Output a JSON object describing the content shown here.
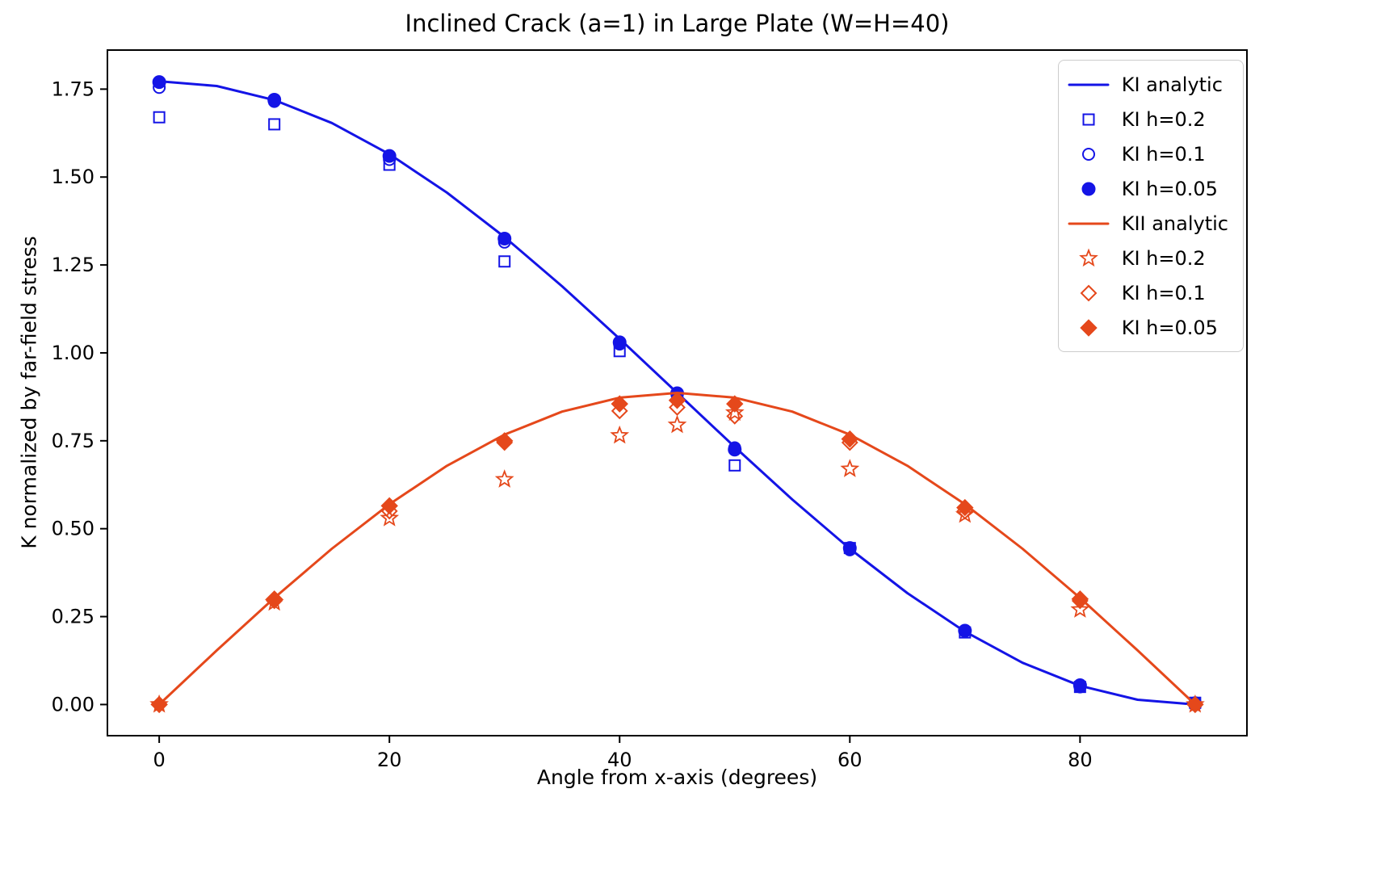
{
  "figure": {
    "background": "#ffffff"
  },
  "chart_data": {
    "type": "line",
    "title": "Inclined Crack (a=1) in Large Plate (W=H=40)",
    "xlabel": "Angle from x-axis (degrees)",
    "ylabel": "K normalized by far-field stress",
    "xlim": [
      -4.5,
      94.5
    ],
    "ylim": [
      -0.0886,
      1.8611
    ],
    "x_ticks": [
      0,
      20,
      40,
      60,
      80
    ],
    "x_tick_labels": [
      "0",
      "20",
      "40",
      "60",
      "80"
    ],
    "y_ticks": [
      0,
      0.25,
      0.5,
      0.75,
      1.0,
      1.25,
      1.5,
      1.75
    ],
    "y_tick_labels": [
      "0.00",
      "0.25",
      "0.50",
      "0.75",
      "1.00",
      "1.25",
      "1.50",
      "1.75"
    ],
    "grid": false,
    "legend_position": "upper right",
    "colors": {
      "ki_blue": "#1414e6",
      "kii_red": "#e5481b"
    },
    "series": [
      {
        "name": "KI analytic",
        "style": "line",
        "color": "#1414e6",
        "x": [
          0,
          5,
          10,
          15,
          20,
          25,
          30,
          35,
          40,
          45,
          50,
          55,
          60,
          65,
          70,
          75,
          80,
          85,
          90
        ],
        "y": [
          1.7725,
          1.759,
          1.7189,
          1.6537,
          1.5651,
          1.4558,
          1.3294,
          1.1894,
          1.0402,
          0.8862,
          0.7323,
          0.5831,
          0.4431,
          0.3167,
          0.2073,
          0.1187,
          0.0534,
          0.0135,
          0.0
        ]
      },
      {
        "name": "KI h=0.2",
        "style": "square-open",
        "color": "#1414e6",
        "x": [
          0,
          10,
          20,
          30,
          40,
          45,
          50,
          60,
          70,
          80,
          90
        ],
        "y": [
          1.67,
          1.65,
          1.535,
          1.26,
          1.005,
          0.875,
          0.68,
          0.445,
          0.205,
          0.05,
          0.005
        ]
      },
      {
        "name": "KI h=0.1",
        "style": "circle-open",
        "color": "#1414e6",
        "x": [
          0,
          10,
          20,
          30,
          40,
          45,
          50,
          60,
          70,
          80,
          90
        ],
        "y": [
          1.755,
          1.715,
          1.55,
          1.315,
          1.025,
          0.88,
          0.73,
          0.44,
          0.21,
          0.05,
          0.005
        ]
      },
      {
        "name": "KI h=0.05",
        "style": "circle-filled",
        "color": "#1414e6",
        "x": [
          0,
          10,
          20,
          30,
          40,
          45,
          50,
          60,
          70,
          80,
          90
        ],
        "y": [
          1.77,
          1.72,
          1.56,
          1.325,
          1.03,
          0.885,
          0.725,
          0.445,
          0.21,
          0.055,
          0.0
        ]
      },
      {
        "name": "KII analytic",
        "style": "line",
        "color": "#e5481b",
        "x": [
          0,
          5,
          10,
          15,
          20,
          25,
          30,
          35,
          40,
          45,
          50,
          55,
          60,
          65,
          70,
          75,
          80,
          85,
          90
        ],
        "y": [
          0.0,
          0.1539,
          0.3031,
          0.4431,
          0.5696,
          0.6788,
          0.7675,
          0.8329,
          0.8727,
          0.8862,
          0.8727,
          0.8329,
          0.7675,
          0.6788,
          0.5696,
          0.4431,
          0.3031,
          0.1539,
          0.0
        ]
      },
      {
        "name": "KI h=0.2",
        "style": "star-open",
        "color": "#e5481b",
        "x": [
          0,
          10,
          20,
          30,
          40,
          45,
          50,
          60,
          70,
          80,
          90
        ],
        "y": [
          0.0,
          0.29,
          0.53,
          0.64,
          0.765,
          0.795,
          0.83,
          0.67,
          0.54,
          0.27,
          0.0
        ]
      },
      {
        "name": "KI h=0.1",
        "style": "diamond-open",
        "color": "#e5481b",
        "x": [
          0,
          10,
          20,
          30,
          40,
          45,
          50,
          60,
          70,
          80,
          90
        ],
        "y": [
          0.0,
          0.295,
          0.55,
          0.745,
          0.835,
          0.845,
          0.82,
          0.745,
          0.55,
          0.295,
          0.0
        ]
      },
      {
        "name": "KI h=0.05",
        "style": "diamond-filled",
        "color": "#e5481b",
        "x": [
          0,
          10,
          20,
          30,
          40,
          45,
          50,
          60,
          70,
          80,
          90
        ],
        "y": [
          0.0,
          0.3,
          0.565,
          0.75,
          0.855,
          0.865,
          0.855,
          0.755,
          0.56,
          0.3,
          0.0
        ]
      }
    ]
  }
}
